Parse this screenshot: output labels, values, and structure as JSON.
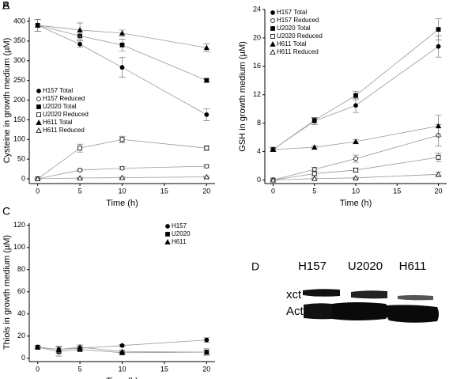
{
  "chart_data": [
    {
      "type": "line",
      "panel": "A",
      "xlabel": "Time (h)",
      "ylabel": "Cysteine in growth medium (µM)",
      "x": [
        0,
        5,
        10,
        20
      ],
      "xlim": [
        -1,
        21
      ],
      "xticks": [
        0,
        5,
        10,
        15,
        20
      ],
      "ylim": [
        -12,
        410
      ],
      "yticks": [
        0,
        50,
        100,
        150,
        200,
        250,
        300,
        350,
        400
      ],
      "legend": "center-left",
      "series": [
        {
          "name": "H157 Total",
          "color": "#000000",
          "marker": "circle",
          "fill": "filled",
          "values": [
            390,
            342,
            283,
            163
          ],
          "errors": [
            15,
            8,
            25,
            15
          ]
        },
        {
          "name": "H157 Reduced",
          "color": "#000000",
          "marker": "circle",
          "fill": "open",
          "values": [
            0,
            22,
            27,
            32
          ],
          "errors": [
            0,
            3,
            4,
            4
          ]
        },
        {
          "name": "U2020 Total",
          "color": "#000000",
          "marker": "square",
          "fill": "filled",
          "values": [
            390,
            363,
            340,
            250
          ],
          "errors": [
            15,
            10,
            15,
            5
          ]
        },
        {
          "name": "U2020 Reduced",
          "color": "#000000",
          "marker": "square",
          "fill": "open",
          "values": [
            0,
            78,
            100,
            78
          ],
          "errors": [
            0,
            10,
            8,
            6
          ]
        },
        {
          "name": "H611 Total",
          "color": "#000000",
          "marker": "triangle",
          "fill": "filled",
          "values": [
            390,
            378,
            370,
            333
          ],
          "errors": [
            15,
            18,
            8,
            10
          ]
        },
        {
          "name": "H611 Reduced",
          "color": "#000000",
          "marker": "triangle",
          "fill": "open",
          "values": [
            0,
            2,
            3,
            5
          ],
          "errors": [
            0,
            2,
            2,
            2
          ]
        }
      ]
    },
    {
      "type": "line",
      "panel": "B",
      "xlabel": "Time (h)",
      "ylabel": "GSH in growth medium (µM)",
      "x": [
        0,
        5,
        10,
        20
      ],
      "xlim": [
        -1,
        21
      ],
      "xticks": [
        0,
        5,
        10,
        15,
        20
      ],
      "ylim": [
        -0.5,
        24
      ],
      "yticks": [
        0,
        4,
        8,
        12,
        16,
        20,
        24
      ],
      "legend": "top-left",
      "series": [
        {
          "name": "H157 Total",
          "color": "#000000",
          "marker": "circle",
          "fill": "filled",
          "values": [
            4.3,
            8.3,
            10.5,
            18.8
          ],
          "errors": [
            0.3,
            0.5,
            1,
            1.5
          ]
        },
        {
          "name": "H157 Reduced",
          "color": "#000000",
          "marker": "circle",
          "fill": "open",
          "values": [
            0,
            1.5,
            3,
            6.3
          ],
          "errors": [
            0,
            0.3,
            0.5,
            1.5
          ]
        },
        {
          "name": "U2020 Total",
          "color": "#000000",
          "marker": "square",
          "fill": "filled",
          "values": [
            4.3,
            8.4,
            11.9,
            21.2
          ],
          "errors": [
            0.3,
            0.4,
            0.6,
            1.5
          ]
        },
        {
          "name": "U2020 Reduced",
          "color": "#000000",
          "marker": "square",
          "fill": "open",
          "values": [
            0,
            0.9,
            1.4,
            3.2
          ],
          "errors": [
            0,
            0.3,
            0.3,
            0.6
          ]
        },
        {
          "name": "H611 Total",
          "color": "#000000",
          "marker": "triangle",
          "fill": "filled",
          "values": [
            4.3,
            4.6,
            5.4,
            7.6
          ],
          "errors": [
            0.2,
            0.2,
            0.3,
            1.5
          ]
        },
        {
          "name": "H611 Reduced",
          "color": "#000000",
          "marker": "triangle",
          "fill": "open",
          "values": [
            0,
            0.2,
            0.3,
            0.8
          ],
          "errors": [
            0,
            0.1,
            0.1,
            0.3
          ]
        }
      ]
    },
    {
      "type": "line",
      "panel": "C",
      "xlabel": "Time (h)",
      "ylabel": "Thiols in growth medium (µM)",
      "x": [
        0,
        2.5,
        5,
        10,
        20
      ],
      "xlim": [
        -1,
        21
      ],
      "xticks": [
        0,
        5,
        10,
        15,
        20
      ],
      "ylim": [
        -3,
        122
      ],
      "yticks": [
        0,
        20,
        40,
        60,
        80,
        100,
        120
      ],
      "legend": "top-right",
      "series": [
        {
          "name": "H157",
          "color": "#000000",
          "marker": "circle",
          "fill": "filled",
          "values": [
            10,
            8,
            9,
            11.5,
            16.5
          ],
          "errors": [
            1,
            3,
            2,
            1,
            2
          ]
        },
        {
          "name": "U2020",
          "color": "#000000",
          "marker": "square",
          "fill": "filled",
          "values": [
            10,
            6,
            8,
            5,
            5.5
          ],
          "errors": [
            1,
            4,
            2,
            2,
            3
          ]
        },
        {
          "name": "H611",
          "color": "#000000",
          "marker": "triangle",
          "fill": "filled",
          "values": [
            10,
            8,
            10,
            6,
            5.5
          ],
          "errors": [
            1,
            3,
            2,
            1,
            2
          ]
        }
      ]
    }
  ],
  "blot": {
    "panel": "D",
    "lanes": [
      "H157",
      "U2020",
      "H611"
    ],
    "rows": [
      "xct",
      "Actin"
    ]
  }
}
